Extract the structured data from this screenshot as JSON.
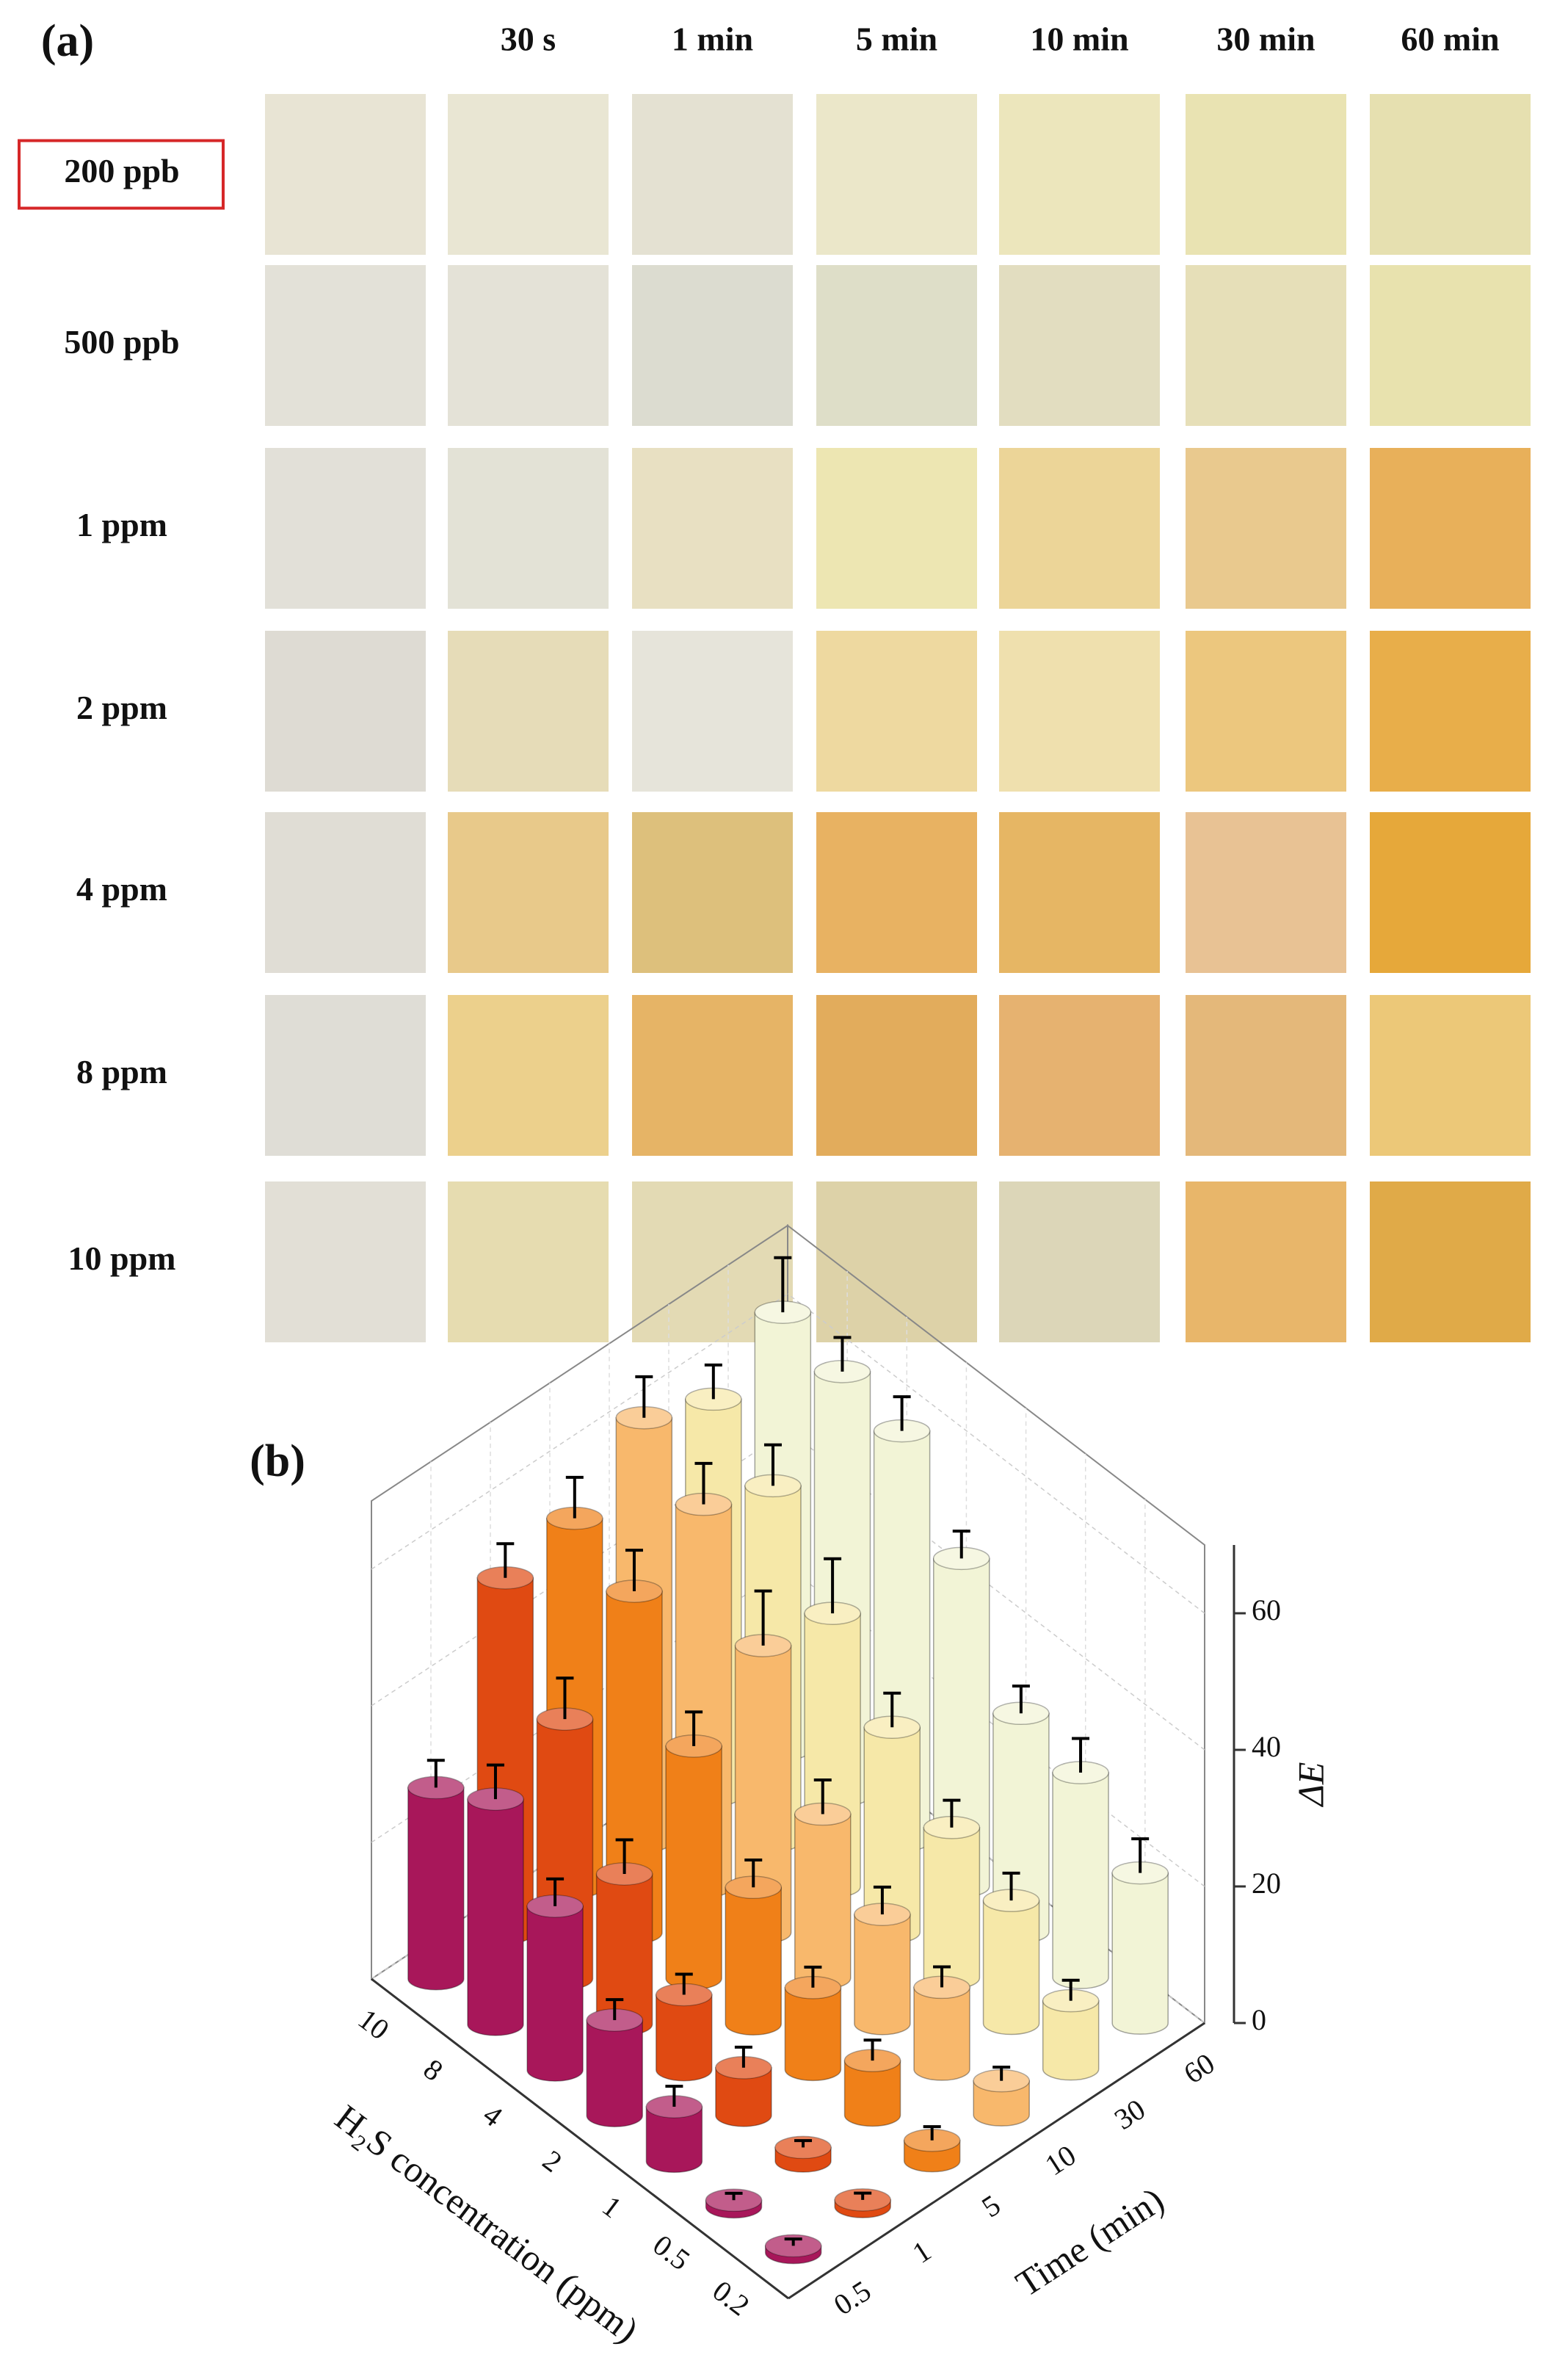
{
  "panel_a": {
    "label": "(a)",
    "columns": [
      "30 s",
      "1 min",
      "5 min",
      "10 min",
      "30 min",
      "60 min"
    ],
    "highlight_row": 0,
    "highlight_color": "#d62728",
    "rows": [
      {
        "label": "200 ppb",
        "swatches": [
          "#e8e4d4",
          "#e9e6d3",
          "#e4e1d2",
          "#ebe7c9",
          "#ece6bc",
          "#e9e3b2",
          "#e6e0b0"
        ]
      },
      {
        "label": "500 ppb",
        "swatches": [
          "#e3e1d8",
          "#e4e2d7",
          "#dcdcd0",
          "#dedec8",
          "#e2ddc0",
          "#e6dfb8",
          "#e8e2ae"
        ]
      },
      {
        "label": "1 ppm",
        "swatches": [
          "#e2e0d8",
          "#e3e2d6",
          "#e8e0c2",
          "#ede6b2",
          "#ecd598",
          "#e9c98e",
          "#e8b05a"
        ]
      },
      {
        "label": "2 ppm",
        "swatches": [
          "#dedbd3",
          "#e6dcb8",
          "#e6e4da",
          "#eed9a0",
          "#efe0ae",
          "#ecc77e",
          "#e8ae4a"
        ]
      },
      {
        "label": "4 ppm",
        "swatches": [
          "#e0ddd5",
          "#e8c98a",
          "#ddc07c",
          "#e8b262",
          "#e6b664",
          "#e8c294",
          "#e6a83a"
        ]
      },
      {
        "label": "8 ppm",
        "swatches": [
          "#dfddd6",
          "#ecd08c",
          "#e6b466",
          "#e2ac5c",
          "#e6b270",
          "#e4b87a",
          "#ecc878"
        ]
      },
      {
        "label": "10 ppm",
        "swatches": [
          "#e2dfd6",
          "#e6dcb0",
          "#e3dab4",
          "#ddd2a8",
          "#dcd6b8",
          "#e8b66a",
          "#e0aa48"
        ]
      }
    ]
  },
  "chart_data": {
    "type": "bar3d",
    "label": "(b)",
    "xlabel": "H₂S concentration (ppm)",
    "categories": [
      "0.2",
      "0.5",
      "1",
      "2",
      "4",
      "8",
      "10"
    ],
    "depth_label": "Time (min)",
    "depth_categories": [
      "0.5",
      "1",
      "5",
      "10",
      "30",
      "60"
    ],
    "ylabel": "ΔE",
    "ylim": [
      0,
      70
    ],
    "yticks": [
      0,
      20,
      40,
      60
    ],
    "grid": true,
    "series": [
      {
        "color": "#a8175a",
        "values": [
          1,
          1,
          8,
          14,
          24,
          33,
          28
        ],
        "errors": [
          1,
          1,
          3,
          3,
          4,
          5,
          4
        ]
      },
      {
        "color": "#e04a12",
        "values": [
          1,
          2,
          7,
          11,
          22,
          38,
          52
        ],
        "errors": [
          1,
          1,
          3,
          3,
          5,
          6,
          5
        ]
      },
      {
        "color": "#f08018",
        "values": [
          3,
          8,
          12,
          20,
          34,
          50,
          54
        ],
        "errors": [
          2,
          3,
          3,
          4,
          5,
          6,
          6
        ]
      },
      {
        "color": "#f8b86c",
        "values": [
          5,
          12,
          16,
          24,
          42,
          56,
          62
        ],
        "errors": [
          2,
          3,
          4,
          5,
          8,
          6,
          6
        ]
      },
      {
        "color": "#f6e8a8",
        "values": [
          10,
          18,
          22,
          30,
          40,
          52,
          58
        ],
        "errors": [
          3,
          4,
          4,
          5,
          8,
          6,
          5
        ]
      },
      {
        "color": "#f2f4d6",
        "values": [
          22,
          30,
          32,
          48,
          60,
          62,
          64
        ],
        "errors": [
          5,
          5,
          4,
          4,
          5,
          5,
          8
        ]
      }
    ]
  }
}
